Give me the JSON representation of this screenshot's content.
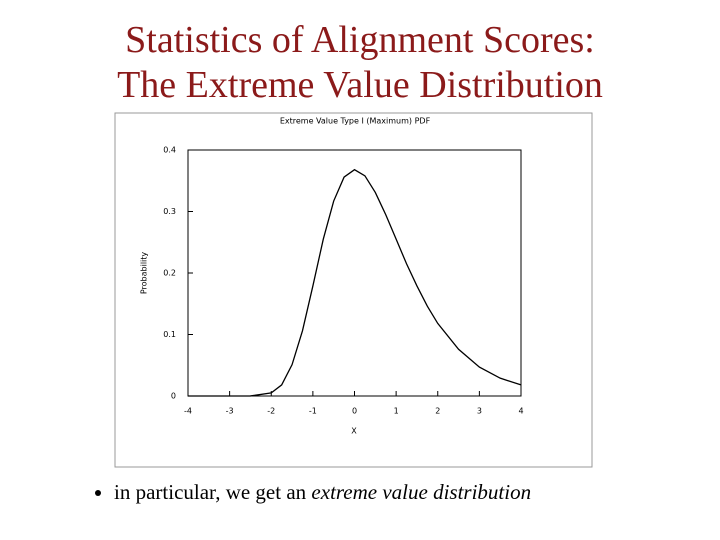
{
  "slide": {
    "title": [
      "Statistics of Alignment Scores:",
      "The Extreme Value Distribution"
    ],
    "bullet": {
      "text": "in particular, we get an ",
      "emphasis": "extreme value distribution"
    }
  },
  "chart_data": {
    "type": "line",
    "title": "Extreme Value Type I (Maximum) PDF",
    "x_label": "X",
    "y_label": "Probability",
    "color": "#000000",
    "x": [
      -4,
      -3.5,
      -3,
      -2.5,
      -2,
      -1.75,
      -1.5,
      -1.25,
      -1,
      -0.75,
      -0.5,
      -0.25,
      0,
      0.25,
      0.5,
      0.75,
      1,
      1.25,
      1.5,
      1.75,
      2,
      2.5,
      3,
      3.5,
      4
    ],
    "values": [
      0,
      0,
      0,
      0.0001,
      0.005,
      0.018,
      0.051,
      0.106,
      0.179,
      0.255,
      0.317,
      0.356,
      0.368,
      0.358,
      0.331,
      0.295,
      0.255,
      0.215,
      0.179,
      0.146,
      0.118,
      0.076,
      0.047,
      0.029,
      0.018
    ],
    "xlim": [
      -4,
      4
    ],
    "xticks": [
      -4,
      -3,
      -2,
      -1,
      0,
      1,
      2,
      3,
      4
    ],
    "ylim": [
      0,
      0.4
    ],
    "yticks": [
      0,
      0.1,
      0.2,
      0.3,
      0.4
    ]
  }
}
